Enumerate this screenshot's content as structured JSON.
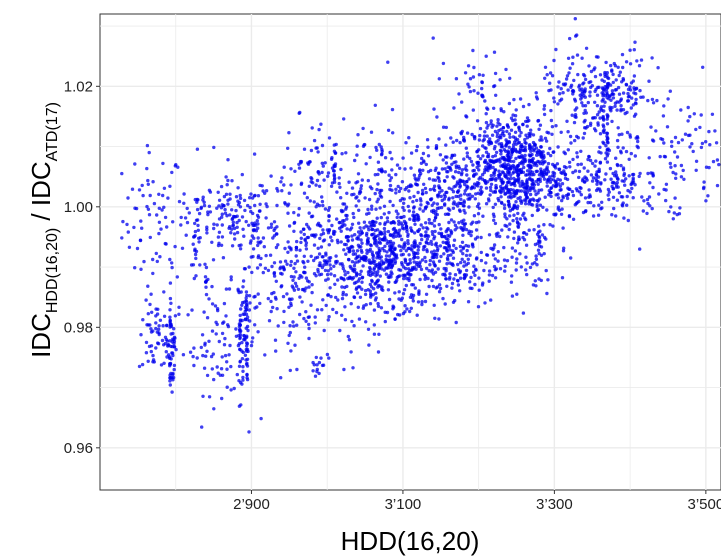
{
  "chart_data": {
    "type": "scatter",
    "xlabel": "HDD(16,20)",
    "ylabel": {
      "main1": "IDC",
      "sub1": "HDD(16,20)",
      "sep": " / ",
      "main2": "IDC",
      "sub2": "ATD(17)"
    },
    "xlim": [
      2700,
      3520
    ],
    "ylim": [
      0.953,
      1.032
    ],
    "x_ticks": [
      2900,
      3100,
      3300,
      3500
    ],
    "x_tick_labels": [
      "2’900",
      "3’100",
      "3’300",
      "3’500"
    ],
    "y_ticks": [
      0.96,
      0.98,
      1.0,
      1.02
    ],
    "y_tick_labels": [
      "0.96",
      "0.98",
      "1.00",
      "1.02"
    ],
    "grid": true,
    "point_color": "#0000ee",
    "background": "#ffffff",
    "grid_color": "#ebebeb",
    "clusters": [
      {
        "x": 2770,
        "y": 0.998,
        "sx": 20,
        "sy": 0.006,
        "n": 60
      },
      {
        "x": 2775,
        "y": 0.978,
        "sx": 12,
        "sy": 0.003,
        "n": 60
      },
      {
        "x": 2795,
        "y": 0.976,
        "sx": 3,
        "sy": 0.004,
        "n": 30
      },
      {
        "x": 2830,
        "y": 0.996,
        "sx": 25,
        "sy": 0.006,
        "n": 80
      },
      {
        "x": 2860,
        "y": 0.977,
        "sx": 25,
        "sy": 0.004,
        "n": 80
      },
      {
        "x": 2890,
        "y": 0.978,
        "sx": 3,
        "sy": 0.006,
        "n": 40
      },
      {
        "x": 2880,
        "y": 0.998,
        "sx": 25,
        "sy": 0.003,
        "n": 100
      },
      {
        "x": 2930,
        "y": 0.993,
        "sx": 30,
        "sy": 0.007,
        "n": 120
      },
      {
        "x": 2960,
        "y": 0.985,
        "sx": 30,
        "sy": 0.006,
        "n": 80
      },
      {
        "x": 2990,
        "y": 0.995,
        "sx": 30,
        "sy": 0.005,
        "n": 120
      },
      {
        "x": 3030,
        "y": 1.004,
        "sx": 40,
        "sy": 0.006,
        "n": 100
      },
      {
        "x": 3050,
        "y": 0.989,
        "sx": 35,
        "sy": 0.005,
        "n": 220
      },
      {
        "x": 3080,
        "y": 0.992,
        "sx": 35,
        "sy": 0.004,
        "n": 260
      },
      {
        "x": 3100,
        "y": 0.997,
        "sx": 40,
        "sy": 0.006,
        "n": 160
      },
      {
        "x": 3130,
        "y": 1.003,
        "sx": 25,
        "sy": 0.004,
        "n": 120
      },
      {
        "x": 3160,
        "y": 0.991,
        "sx": 35,
        "sy": 0.004,
        "n": 200
      },
      {
        "x": 3180,
        "y": 1.004,
        "sx": 25,
        "sy": 0.005,
        "n": 140
      },
      {
        "x": 3230,
        "y": 1.007,
        "sx": 30,
        "sy": 0.004,
        "n": 320
      },
      {
        "x": 3260,
        "y": 1.007,
        "sx": 25,
        "sy": 0.005,
        "n": 260
      },
      {
        "x": 3250,
        "y": 0.993,
        "sx": 25,
        "sy": 0.004,
        "n": 80
      },
      {
        "x": 3300,
        "y": 1.004,
        "sx": 35,
        "sy": 0.004,
        "n": 180
      },
      {
        "x": 3340,
        "y": 1.018,
        "sx": 30,
        "sy": 0.004,
        "n": 140
      },
      {
        "x": 3370,
        "y": 1.005,
        "sx": 30,
        "sy": 0.003,
        "n": 120
      },
      {
        "x": 3390,
        "y": 1.019,
        "sx": 20,
        "sy": 0.003,
        "n": 100
      },
      {
        "x": 3420,
        "y": 1.005,
        "sx": 30,
        "sy": 0.005,
        "n": 60
      },
      {
        "x": 3470,
        "y": 1.009,
        "sx": 25,
        "sy": 0.006,
        "n": 40
      },
      {
        "x": 3500,
        "y": 1.008,
        "sx": 12,
        "sy": 0.004,
        "n": 15
      },
      {
        "x": 2990,
        "y": 1.008,
        "sx": 15,
        "sy": 0.004,
        "n": 30
      },
      {
        "x": 3210,
        "y": 1.019,
        "sx": 25,
        "sy": 0.003,
        "n": 30
      },
      {
        "x": 2980,
        "y": 0.974,
        "sx": 15,
        "sy": 0.002,
        "n": 15
      }
    ],
    "vertical_streaks": [
      {
        "x": 2793,
        "y0": 0.97,
        "y1": 0.985,
        "n": 22
      },
      {
        "x": 2885,
        "y0": 0.973,
        "y1": 0.982,
        "n": 18
      },
      {
        "x": 2894,
        "y0": 0.97,
        "y1": 0.986,
        "n": 24
      },
      {
        "x": 2840,
        "y0": 0.985,
        "y1": 0.99,
        "n": 8
      },
      {
        "x": 3010,
        "y0": 1.004,
        "y1": 1.011,
        "n": 10
      },
      {
        "x": 3072,
        "y0": 1.005,
        "y1": 1.01,
        "n": 10
      },
      {
        "x": 3085,
        "y0": 0.988,
        "y1": 0.996,
        "n": 12
      },
      {
        "x": 3115,
        "y0": 0.989,
        "y1": 0.998,
        "n": 12
      },
      {
        "x": 3158,
        "y0": 0.986,
        "y1": 0.996,
        "n": 12
      },
      {
        "x": 3180,
        "y0": 0.996,
        "y1": 1.001,
        "n": 10
      },
      {
        "x": 3240,
        "y0": 1.0,
        "y1": 1.012,
        "n": 16
      },
      {
        "x": 3268,
        "y0": 1.004,
        "y1": 1.013,
        "n": 14
      },
      {
        "x": 3205,
        "y0": 1.018,
        "y1": 1.022,
        "n": 8
      },
      {
        "x": 3370,
        "y0": 1.008,
        "y1": 1.023,
        "n": 26
      },
      {
        "x": 3365,
        "y0": 1.012,
        "y1": 1.02,
        "n": 14
      },
      {
        "x": 3340,
        "y0": 1.012,
        "y1": 1.02,
        "n": 10
      },
      {
        "x": 3280,
        "y0": 0.988,
        "y1": 0.996,
        "n": 10
      }
    ],
    "outliers": [
      {
        "x": 3140,
        "y": 1.028
      },
      {
        "x": 3080,
        "y": 1.024
      },
      {
        "x": 2960,
        "y": 0.973
      },
      {
        "x": 3022,
        "y": 0.973
      },
      {
        "x": 2765,
        "y": 1.009
      },
      {
        "x": 3500,
        "y": 1.001
      },
      {
        "x": 3210,
        "y": 1.025
      },
      {
        "x": 3400,
        "y": 1.026
      }
    ]
  }
}
